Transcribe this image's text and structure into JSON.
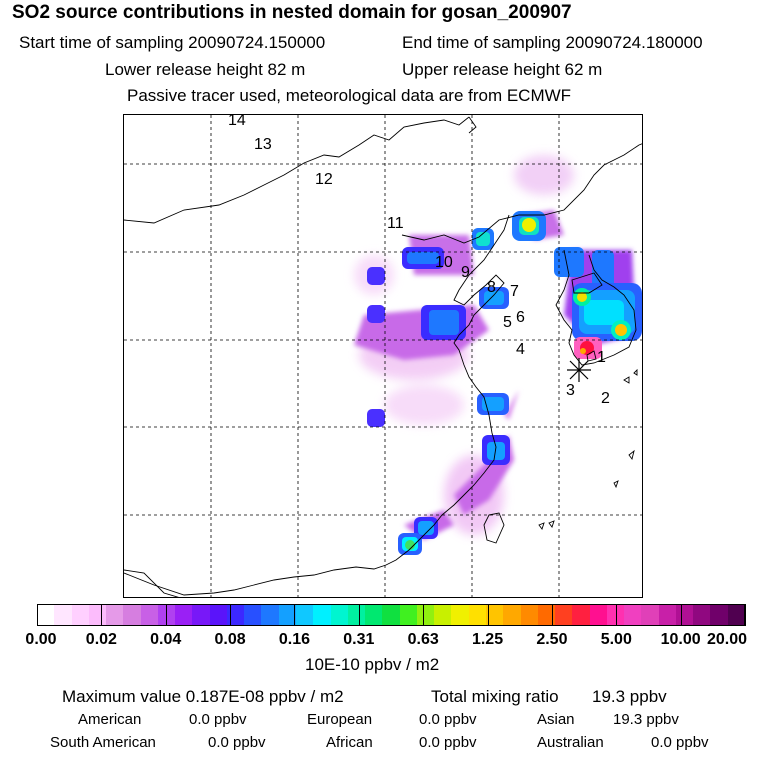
{
  "title": "SO2 source contributions in nested domain for gosan_200907",
  "header": {
    "start": "Start time of sampling 20090724.150000",
    "end": "End time of sampling 20090724.180000",
    "lower": "Lower release height   82 m",
    "upper": "Upper release height   62 m",
    "tracer": "Passive tracer used, meteorological data are from ECMWF"
  },
  "map": {
    "point_labels": [
      "1",
      "2",
      "3",
      "4",
      "5",
      "6",
      "7",
      "8",
      "9",
      "10",
      "11",
      "12",
      "13",
      "14"
    ],
    "receptor_marker": "asterisk"
  },
  "colorbar": {
    "tick_labels": [
      "0.00",
      "0.02",
      "0.04",
      "0.08",
      "0.16",
      "0.31",
      "0.63",
      "1.25",
      "2.50",
      "5.00",
      "10.00",
      "20.00"
    ],
    "units": "10E-10 ppbv / m2",
    "colors": [
      "#ffffff",
      "#ffe6ff",
      "#ffd0ff",
      "#fcbcfc",
      "#e59ae8",
      "#d67ee0",
      "#c860e6",
      "#b040f0",
      "#9a20f5",
      "#7818f8",
      "#5a14fa",
      "#3c28ff",
      "#2850ff",
      "#1e78ff",
      "#14a0ff",
      "#10c8ff",
      "#00f0ff",
      "#00f5d0",
      "#00f0a0",
      "#00e870",
      "#10e040",
      "#40f020",
      "#90f010",
      "#c8f000",
      "#f0f000",
      "#ffe000",
      "#ffc400",
      "#ffa800",
      "#ff8a00",
      "#ff6a00",
      "#ff4020",
      "#ff2040",
      "#ff1090",
      "#ff30b0",
      "#f040c0",
      "#e040b8",
      "#c820a8",
      "#b01094",
      "#900880",
      "#70006a",
      "#500050"
    ]
  },
  "summary": {
    "max_label": "Maximum value  0.187E-08 ppbv / m2",
    "total_label": "Total mixing ratio",
    "total_value": "19.3 ppbv",
    "american_label": "American",
    "american_value": "0.0 ppbv",
    "european_label": "European",
    "european_value": "0.0 ppbv",
    "asian_label": "Asian",
    "asian_value": "19.3 ppbv",
    "south_american_label": "South American",
    "south_american_value": "0.0 ppbv",
    "african_label": "African",
    "african_value": "0.0 ppbv",
    "australian_label": "Australian",
    "australian_value": "0.0 ppbv"
  }
}
